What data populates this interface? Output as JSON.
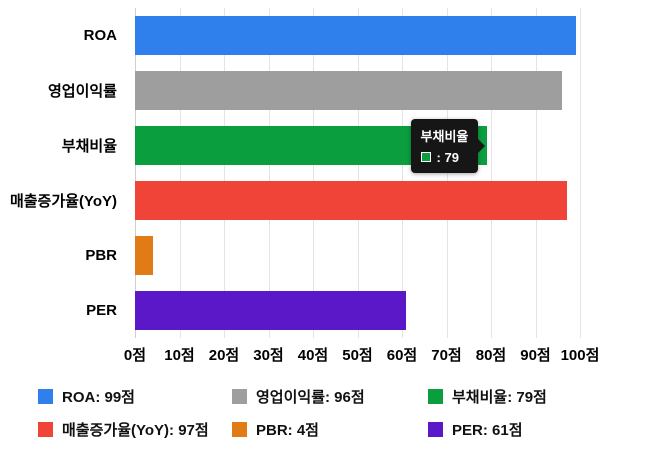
{
  "chart_data": {
    "type": "bar",
    "orientation": "horizontal",
    "title": "",
    "categories": [
      "ROA",
      "영업이익률",
      "부채비율",
      "매출증가율(YoY)",
      "PBR",
      "PER"
    ],
    "values": [
      99,
      96,
      79,
      97,
      4,
      61
    ],
    "colors": [
      "#2f80ed",
      "#9e9e9e",
      "#0a9e3f",
      "#f04438",
      "#e07b16",
      "#5b18c8"
    ],
    "value_unit": "점",
    "xlim": [
      0,
      100
    ],
    "x_ticks": [
      "0점",
      "10점",
      "20점",
      "30점",
      "40점",
      "50점",
      "60점",
      "70점",
      "80점",
      "90점",
      "100점"
    ],
    "grid": true,
    "legend_position": "bottom"
  },
  "tooltip": {
    "title": "부채비율",
    "value_label": ": 79",
    "color": "#0a9e3f"
  },
  "legend": {
    "items": [
      {
        "label": "ROA: 99점",
        "color": "#2f80ed"
      },
      {
        "label": "영업이익률: 96점",
        "color": "#9e9e9e"
      },
      {
        "label": "부채비율: 79점",
        "color": "#0a9e3f"
      },
      {
        "label": "매출증가율(YoY): 97점",
        "color": "#f04438"
      },
      {
        "label": "PBR: 4점",
        "color": "#e07b16"
      },
      {
        "label": "PER: 61점",
        "color": "#5b18c8"
      }
    ]
  }
}
